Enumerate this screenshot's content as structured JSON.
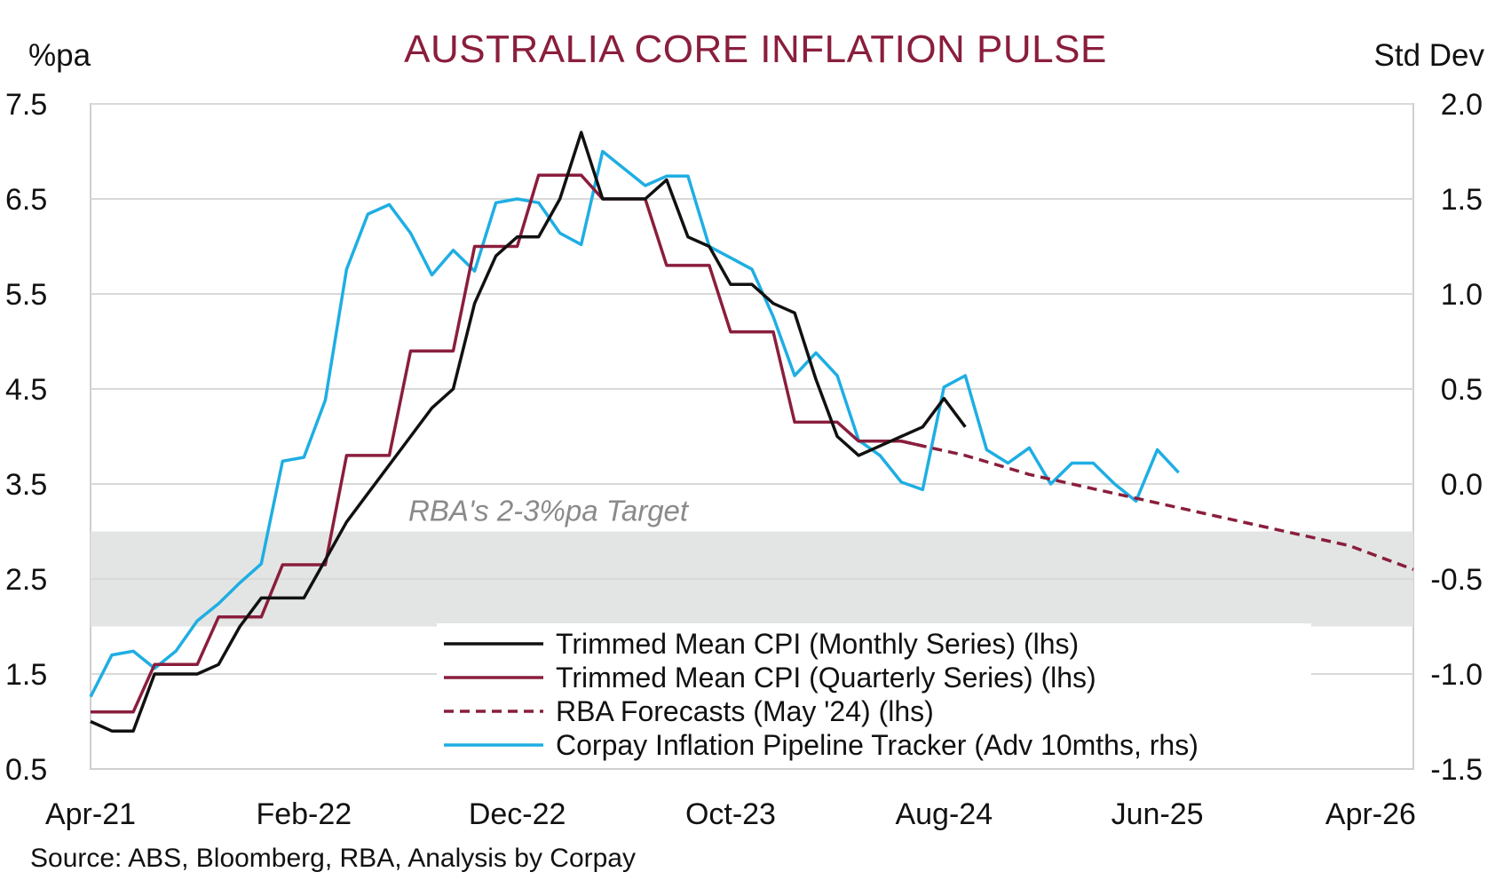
{
  "chart_data": {
    "type": "line",
    "title": "AUSTRALIA CORE INFLATION PULSE",
    "left_axis_unit": "%pa",
    "right_axis_unit": "Std Dev",
    "source": "Source: ABS, Bloomberg, RBA, Analysis by Corpay",
    "x_range": [
      "2021-04",
      "2026-06"
    ],
    "x_ticks": [
      {
        "date": "2021-04",
        "label": "Apr-21"
      },
      {
        "date": "2022-02",
        "label": "Feb-22"
      },
      {
        "date": "2022-12",
        "label": "Dec-22"
      },
      {
        "date": "2023-10",
        "label": "Oct-23"
      },
      {
        "date": "2024-08",
        "label": "Aug-24"
      },
      {
        "date": "2025-06",
        "label": "Jun-25"
      },
      {
        "date": "2026-04",
        "label": "Apr-26"
      }
    ],
    "y_left": {
      "min": 0.5,
      "max": 7.5,
      "ticks": [
        0.5,
        1.5,
        2.5,
        3.5,
        4.5,
        5.5,
        6.5,
        7.5
      ],
      "tick_labels": [
        "0.5",
        "1.5",
        "2.5",
        "3.5",
        "4.5",
        "5.5",
        "6.5",
        "7.5"
      ]
    },
    "y_right": {
      "min": -1.5,
      "max": 2.0,
      "ticks": [
        -1.5,
        -1.0,
        -0.5,
        0.0,
        0.5,
        1.0,
        1.5,
        2.0
      ],
      "tick_labels": [
        "-1.5",
        "-1.0",
        "-0.5",
        "0.0",
        "0.5",
        "1.0",
        "1.5",
        "2.0"
      ]
    },
    "grid": true,
    "target_band": {
      "label": "RBA's 2-3%pa Target",
      "low": 2.0,
      "high": 3.0,
      "color": "#e3e5e4"
    },
    "legend_position": "bottom-center",
    "series": [
      {
        "name": "Trimmed Mean CPI (Monthly Series) (lhs)",
        "axis": "left",
        "color": "#111111",
        "dash": "solid",
        "points": [
          [
            "2021-04",
            1.0
          ],
          [
            "2021-05",
            0.9
          ],
          [
            "2021-06",
            0.9
          ],
          [
            "2021-07",
            1.5
          ],
          [
            "2021-08",
            1.5
          ],
          [
            "2021-09",
            1.5
          ],
          [
            "2021-10",
            1.6
          ],
          [
            "2021-11",
            2.0
          ],
          [
            "2021-12",
            2.3
          ],
          [
            "2022-01",
            2.3
          ],
          [
            "2022-02",
            2.3
          ],
          [
            "2022-03",
            2.7
          ],
          [
            "2022-04",
            3.1
          ],
          [
            "2022-05",
            3.4
          ],
          [
            "2022-06",
            3.7
          ],
          [
            "2022-07",
            4.0
          ],
          [
            "2022-08",
            4.3
          ],
          [
            "2022-09",
            4.5
          ],
          [
            "2022-10",
            5.4
          ],
          [
            "2022-11",
            5.9
          ],
          [
            "2022-12",
            6.1
          ],
          [
            "2023-01",
            6.1
          ],
          [
            "2023-02",
            6.5
          ],
          [
            "2023-03",
            7.2
          ],
          [
            "2023-04",
            6.5
          ],
          [
            "2023-05",
            6.5
          ],
          [
            "2023-06",
            6.5
          ],
          [
            "2023-07",
            6.7
          ],
          [
            "2023-08",
            6.1
          ],
          [
            "2023-09",
            6.0
          ],
          [
            "2023-10",
            5.6
          ],
          [
            "2023-11",
            5.6
          ],
          [
            "2023-12",
            5.4
          ],
          [
            "2024-01",
            5.3
          ],
          [
            "2024-02",
            4.6
          ],
          [
            "2024-03",
            4.0
          ],
          [
            "2024-04",
            3.8
          ],
          [
            "2024-05",
            3.9
          ],
          [
            "2024-06",
            4.0
          ],
          [
            "2024-07",
            4.1
          ],
          [
            "2024-08",
            4.4
          ],
          [
            "2024-09",
            4.1
          ]
        ]
      },
      {
        "name": "Trimmed Mean CPI (Quarterly Series) (lhs)",
        "axis": "left",
        "color": "#8a1e3c",
        "dash": "solid",
        "points": [
          [
            "2021-04",
            1.1
          ],
          [
            "2021-06",
            1.1
          ],
          [
            "2021-07",
            1.6
          ],
          [
            "2021-09",
            1.6
          ],
          [
            "2021-10",
            2.1
          ],
          [
            "2021-12",
            2.1
          ],
          [
            "2022-01",
            2.65
          ],
          [
            "2022-03",
            2.65
          ],
          [
            "2022-04",
            3.8
          ],
          [
            "2022-06",
            3.8
          ],
          [
            "2022-07",
            4.9
          ],
          [
            "2022-09",
            4.9
          ],
          [
            "2022-10",
            6.0
          ],
          [
            "2022-12",
            6.0
          ],
          [
            "2023-01",
            6.75
          ],
          [
            "2023-03",
            6.75
          ],
          [
            "2023-04",
            6.5
          ],
          [
            "2023-06",
            6.5
          ],
          [
            "2023-07",
            5.8
          ],
          [
            "2023-09",
            5.8
          ],
          [
            "2023-10",
            5.1
          ],
          [
            "2023-12",
            5.1
          ],
          [
            "2024-01",
            4.15
          ],
          [
            "2024-03",
            4.15
          ],
          [
            "2024-04",
            3.95
          ],
          [
            "2024-06",
            3.95
          ],
          [
            "2024-07",
            3.9
          ]
        ]
      },
      {
        "name": "RBA Forecasts (May '24) (lhs)",
        "axis": "left",
        "color": "#8a1e3c",
        "dash": "dashed",
        "points": [
          [
            "2024-06",
            3.95
          ],
          [
            "2024-09",
            3.8
          ],
          [
            "2024-12",
            3.6
          ],
          [
            "2025-03",
            3.45
          ],
          [
            "2025-06",
            3.3
          ],
          [
            "2025-09",
            3.15
          ],
          [
            "2025-12",
            3.0
          ],
          [
            "2026-03",
            2.85
          ],
          [
            "2026-06",
            2.6
          ]
        ]
      },
      {
        "name": "Corpay Inflation Pipeline Tracker (Adv 10mths, rhs)",
        "axis": "right",
        "color": "#1eaee3",
        "dash": "solid",
        "points": [
          [
            "2021-04",
            -1.12
          ],
          [
            "2021-05",
            -0.9
          ],
          [
            "2021-06",
            -0.88
          ],
          [
            "2021-07",
            -0.97
          ],
          [
            "2021-08",
            -0.88
          ],
          [
            "2021-09",
            -0.72
          ],
          [
            "2021-10",
            -0.63
          ],
          [
            "2021-11",
            -0.52
          ],
          [
            "2021-12",
            -0.42
          ],
          [
            "2022-01",
            0.12
          ],
          [
            "2022-02",
            0.14
          ],
          [
            "2022-03",
            0.44
          ],
          [
            "2022-04",
            1.13
          ],
          [
            "2022-05",
            1.42
          ],
          [
            "2022-06",
            1.47
          ],
          [
            "2022-07",
            1.32
          ],
          [
            "2022-08",
            1.1
          ],
          [
            "2022-09",
            1.23
          ],
          [
            "2022-10",
            1.12
          ],
          [
            "2022-11",
            1.48
          ],
          [
            "2022-12",
            1.5
          ],
          [
            "2023-01",
            1.48
          ],
          [
            "2023-02",
            1.32
          ],
          [
            "2023-03",
            1.26
          ],
          [
            "2023-04",
            1.75
          ],
          [
            "2023-05",
            1.66
          ],
          [
            "2023-06",
            1.57
          ],
          [
            "2023-07",
            1.62
          ],
          [
            "2023-08",
            1.62
          ],
          [
            "2023-09",
            1.25
          ],
          [
            "2023-10",
            1.19
          ],
          [
            "2023-11",
            1.13
          ],
          [
            "2023-12",
            0.88
          ],
          [
            "2024-01",
            0.57
          ],
          [
            "2024-02",
            0.69
          ],
          [
            "2024-03",
            0.57
          ],
          [
            "2024-04",
            0.23
          ],
          [
            "2024-05",
            0.15
          ],
          [
            "2024-06",
            0.01
          ],
          [
            "2024-07",
            -0.03
          ],
          [
            "2024-08",
            0.51
          ],
          [
            "2024-09",
            0.57
          ],
          [
            "2024-10",
            0.18
          ],
          [
            "2024-11",
            0.11
          ],
          [
            "2024-12",
            0.19
          ],
          [
            "2025-01",
            0.0
          ],
          [
            "2025-02",
            0.11
          ],
          [
            "2025-03",
            0.11
          ],
          [
            "2025-04",
            0.0
          ],
          [
            "2025-05",
            -0.09
          ],
          [
            "2025-06",
            0.18
          ],
          [
            "2025-07",
            0.06
          ]
        ]
      }
    ]
  }
}
